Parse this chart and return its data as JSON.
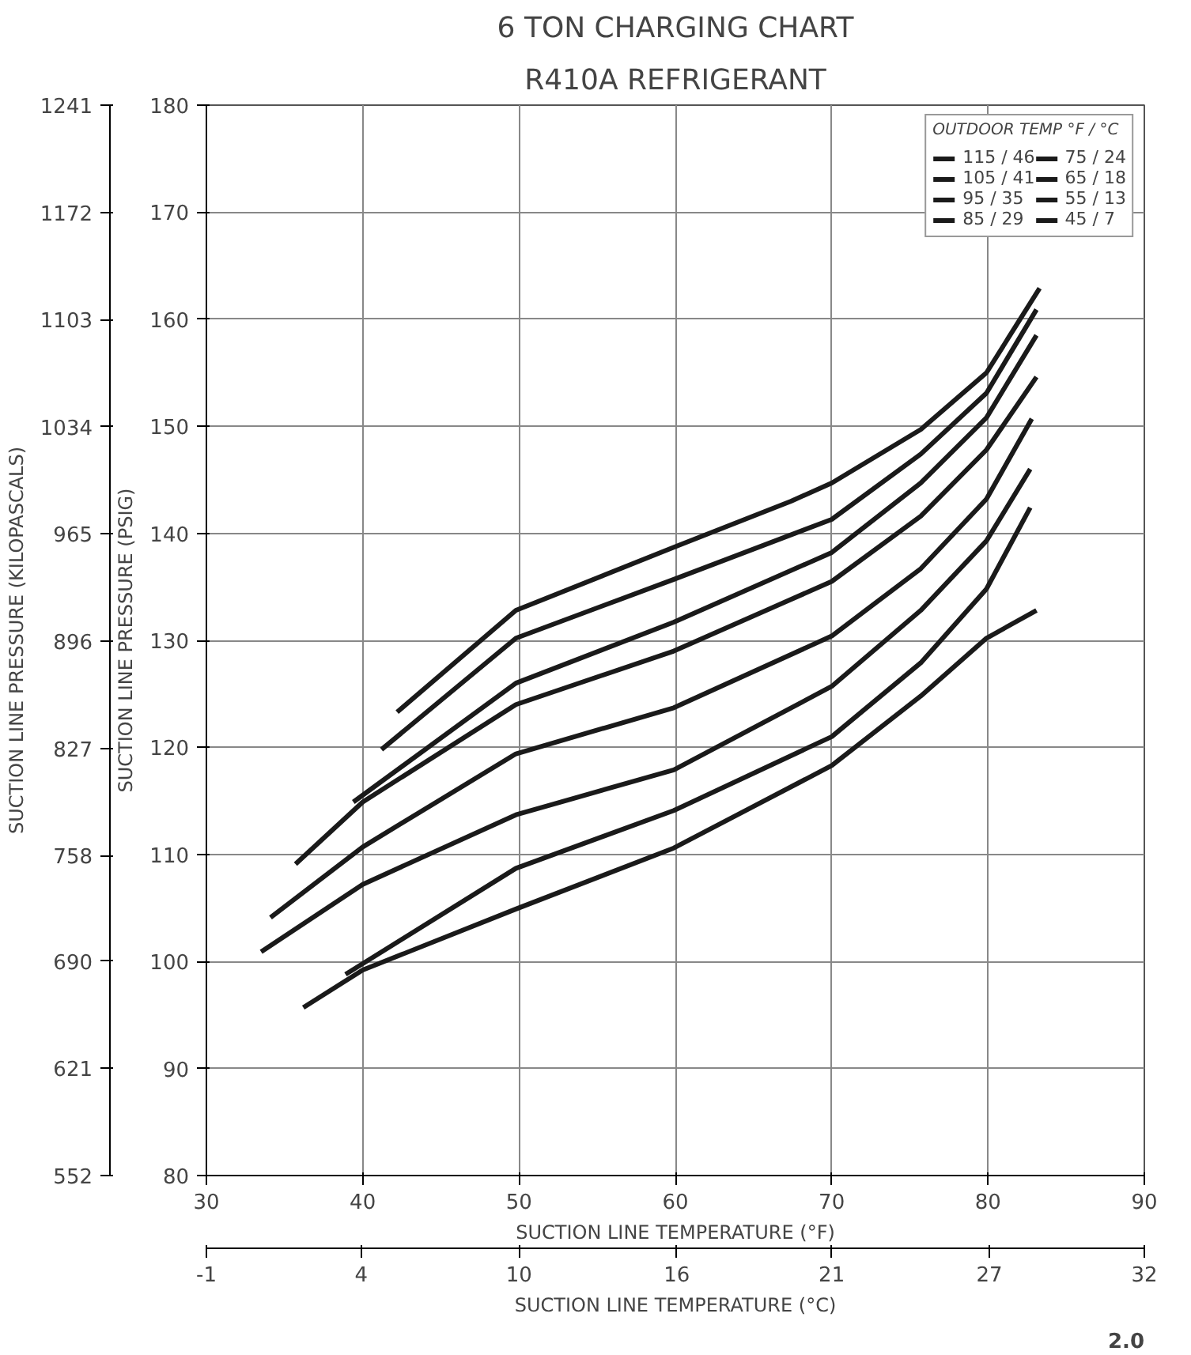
{
  "chart_data": {
    "type": "line",
    "title": "6 TON CHARGING CHART",
    "subtitle": "R410A REFRIGERANT",
    "xlabel": "SUCTION LINE TEMPERATURE (°F)",
    "ylabel": "SUCTION LINE PRESSURE (PSIG)",
    "y2label": "SUCTION LINE PRESSURE (KILOPASCALS)",
    "x2label": "SUCTION LINE TEMPERATURE (°C)",
    "legend_title": "OUTDOOR TEMP °F / °C",
    "xlim": [
      30,
      90
    ],
    "xticks": [
      30,
      40,
      50,
      60,
      70,
      80,
      90
    ],
    "ylim": [
      80,
      180
    ],
    "yticks": [
      80,
      90,
      100,
      110,
      120,
      130,
      140,
      150,
      160,
      170,
      180
    ],
    "y2lim": [
      552,
      1241
    ],
    "y2ticks": [
      552,
      621,
      690,
      758,
      827,
      896,
      965,
      1034,
      1103,
      1172,
      1241
    ],
    "x2lim": [
      -1.1,
      32.2
    ],
    "x2ticks": [
      {
        "value": -1.1,
        "label": "-1"
      },
      {
        "value": 4.4,
        "label": "4"
      },
      {
        "value": 10,
        "label": "10"
      },
      {
        "value": 15.6,
        "label": "16"
      },
      {
        "value": 21.1,
        "label": "21"
      },
      {
        "value": 26.7,
        "label": "27"
      },
      {
        "value": 32.2,
        "label": "32"
      }
    ],
    "grid": true,
    "legend": "top right",
    "marker": "none",
    "line_style": "solid",
    "series": [
      {
        "name": "115 / 46",
        "color": "#1a1a1a",
        "x": [
          42.2,
          49.8,
          59.9,
          67.4,
          70.0,
          75.7,
          79.9,
          83.3
        ],
        "values": [
          123.3,
          132.8,
          138.7,
          143.0,
          144.7,
          149.7,
          155.0,
          162.9
        ]
      },
      {
        "name": "105 / 41",
        "color": "#1a1a1a",
        "x": [
          41.2,
          49.8,
          59.9,
          70.0,
          75.7,
          79.9,
          83.1
        ],
        "values": [
          119.8,
          130.2,
          135.7,
          141.3,
          147.4,
          153.1,
          160.9
        ]
      },
      {
        "name": "95 / 35",
        "color": "#1a1a1a",
        "x": [
          39.4,
          49.8,
          59.9,
          70.0,
          75.7,
          79.9,
          83.1
        ],
        "values": [
          114.9,
          126.0,
          131.7,
          138.2,
          144.7,
          150.8,
          158.5
        ]
      },
      {
        "name": "85 / 29",
        "color": "#1a1a1a",
        "x": [
          35.7,
          40.0,
          49.8,
          59.9,
          70.0,
          75.7,
          79.9,
          83.1
        ],
        "values": [
          109.1,
          114.9,
          124.0,
          129.0,
          135.5,
          141.6,
          147.8,
          154.6
        ]
      },
      {
        "name": "75 / 24",
        "color": "#1a1a1a",
        "x": [
          34.1,
          40.0,
          49.8,
          59.9,
          70.0,
          75.7,
          79.9,
          82.8
        ],
        "values": [
          104.1,
          110.7,
          119.4,
          123.7,
          130.4,
          136.7,
          143.2,
          150.7
        ]
      },
      {
        "name": "65 / 18",
        "color": "#1a1a1a",
        "x": [
          33.5,
          40.0,
          49.8,
          59.9,
          70.0,
          75.7,
          79.9,
          82.7
        ],
        "values": [
          100.9,
          107.2,
          113.7,
          117.9,
          125.7,
          132.8,
          139.3,
          146.0
        ]
      },
      {
        "name": "55 / 13",
        "color": "#1a1a1a",
        "x": [
          38.9,
          49.8,
          59.9,
          70.0,
          75.7,
          79.9,
          82.7
        ],
        "values": [
          98.8,
          108.7,
          114.1,
          121.0,
          127.9,
          134.8,
          142.4
        ]
      },
      {
        "name": "45 / 7",
        "color": "#1a1a1a",
        "x": [
          36.2,
          40.0,
          49.8,
          59.9,
          70.0,
          75.7,
          79.9,
          83.1
        ],
        "values": [
          95.7,
          99.2,
          104.9,
          110.6,
          118.3,
          124.8,
          130.2,
          132.8
        ]
      }
    ],
    "annotations": [
      "2.0"
    ]
  }
}
